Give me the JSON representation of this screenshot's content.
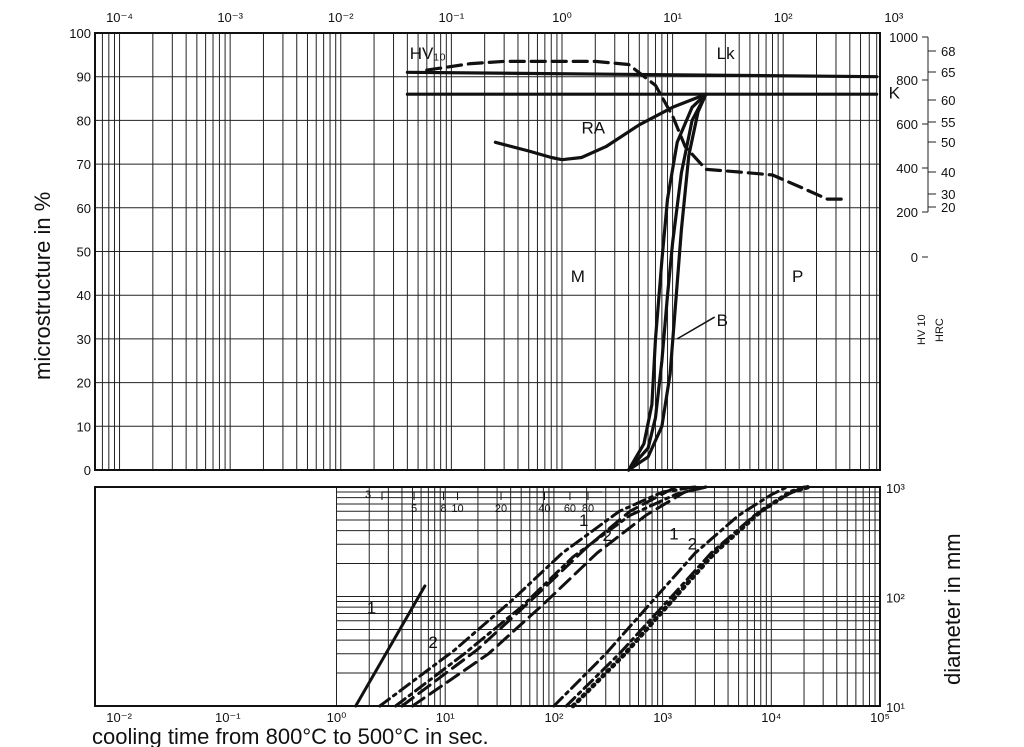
{
  "chart_data": [
    {
      "type": "line",
      "panel": "upper",
      "x_scale": "log",
      "x_ticks": [
        "10⁻⁴",
        "10⁻³",
        "10⁻²",
        "10⁻¹",
        "10⁰",
        "10¹",
        "10²",
        "10³"
      ],
      "xlim": [
        6e-05,
        750
      ],
      "ylabel": "microstructure in %",
      "ylim": [
        0,
        100
      ],
      "y_ticks": [
        "0",
        "10",
        "20",
        "30",
        "40",
        "50",
        "60",
        "70",
        "80",
        "90",
        "100"
      ],
      "hardness_scale": {
        "label_top": "HV 10",
        "label_bottom": "HRC",
        "hv_ticks": [
          "1000",
          "800",
          "600",
          "400",
          "200",
          "0"
        ],
        "hrc_ticks": [
          "68",
          "65",
          "60",
          "55",
          "50",
          "40",
          "30",
          "20"
        ]
      },
      "region_labels": [
        "M",
        "P",
        "RA",
        "B",
        "Lk",
        "K",
        "HV₁₀"
      ],
      "series": [
        {
          "name": "Lk",
          "style": "solid",
          "x": [
            0.04,
            700
          ],
          "y": [
            91,
            90
          ]
        },
        {
          "name": "K",
          "style": "solid",
          "x": [
            0.04,
            700
          ],
          "y": [
            86,
            86
          ]
        },
        {
          "name": "RA",
          "style": "solid",
          "x": [
            0.25,
            0.5,
            0.8,
            1.0,
            1.5,
            2.5,
            5,
            10,
            20
          ],
          "y": [
            75,
            73,
            71.5,
            71,
            71.5,
            74,
            79,
            83,
            86
          ]
        },
        {
          "name": "HV₁₀",
          "style": "dashed",
          "x": [
            0.06,
            0.15,
            0.3,
            0.6,
            1.0,
            2.0,
            4.0,
            7.0,
            10,
            13,
            20,
            40,
            80,
            150,
            250,
            350
          ],
          "y": [
            91.5,
            93,
            93.5,
            93.5,
            93.5,
            93.5,
            92.8,
            88,
            81,
            74,
            68.8,
            68.2,
            67.5,
            64.5,
            62,
            62
          ]
        },
        {
          "name": "B",
          "style": "solid",
          "x": [
            4,
            6,
            7,
            8,
            9,
            10,
            12,
            15,
            20
          ],
          "y": [
            0,
            5,
            12,
            25,
            40,
            52,
            68,
            80,
            86
          ]
        },
        {
          "name": "",
          "style": "solid",
          "x": [
            4,
            5.5,
            6.5,
            7,
            8,
            9,
            11,
            15,
            20
          ],
          "y": [
            0,
            6,
            15,
            30,
            48,
            62,
            75,
            83,
            86
          ]
        },
        {
          "name": "",
          "style": "solid",
          "x": [
            4,
            6,
            8,
            9.5,
            10.5,
            12,
            14,
            17,
            20
          ],
          "y": [
            0,
            3,
            10,
            22,
            36,
            55,
            72,
            82,
            86
          ]
        }
      ]
    },
    {
      "type": "line",
      "panel": "lower",
      "xlabel": "cooling time from 800°C to 500°C in sec.",
      "x_scale": "log",
      "x_ticks": [
        "10⁻²",
        "10⁻¹",
        "10⁰",
        "10¹",
        "10²",
        "10³",
        "10⁴",
        "10⁵"
      ],
      "xlim": [
        0.006,
        100000
      ],
      "ylabel": "diameter in mm",
      "y_scale": "log",
      "y_ticks": [
        "10¹",
        "10²",
        "10³"
      ],
      "ylim": [
        10,
        1000
      ],
      "inset_scale": [
        "3",
        "5",
        "8",
        "10",
        "20",
        "40",
        "60",
        "80"
      ],
      "series": [
        {
          "name": "1",
          "style": "solid",
          "x": [
            1.5,
            6.5
          ],
          "y": [
            10,
            125
          ]
        },
        {
          "name": "1",
          "style": "dashed",
          "x": [
            4,
            20,
            60,
            200,
            500,
            1200,
            2000
          ],
          "y": [
            10,
            33,
            90,
            280,
            600,
            950,
            1000
          ]
        },
        {
          "name": "2",
          "style": "dashed",
          "x": [
            5,
            25,
            80,
            250,
            700,
            1600,
            2500
          ],
          "y": [
            10,
            30,
            85,
            250,
            550,
            900,
            1000
          ]
        },
        {
          "name": "",
          "style": "dash-dot",
          "x": [
            2.5,
            12,
            40,
            120,
            400,
            1000,
            2000
          ],
          "y": [
            10,
            32,
            90,
            250,
            600,
            900,
            1000
          ]
        },
        {
          "name": "",
          "style": "dash-dot",
          "x": [
            3.5,
            15,
            50,
            150,
            500,
            1300,
            2500
          ],
          "y": [
            10,
            30,
            80,
            230,
            550,
            850,
            1000
          ]
        },
        {
          "name": "1",
          "style": "dash-dot",
          "x": [
            100,
            300,
            800,
            2000,
            5000,
            10000,
            14000
          ],
          "y": [
            10,
            30,
            90,
            250,
            550,
            850,
            1000
          ]
        },
        {
          "name": "2",
          "style": "dash-dot",
          "x": [
            130,
            400,
            1100,
            2800,
            7000,
            14000,
            20000
          ],
          "y": [
            10,
            30,
            90,
            250,
            550,
            850,
            1000
          ]
        },
        {
          "name": "",
          "style": "dotted",
          "x": [
            150,
            450,
            1200,
            3000,
            8000,
            15000,
            22000
          ],
          "y": [
            10,
            30,
            90,
            250,
            600,
            900,
            1000
          ]
        }
      ],
      "curve_labels": [
        "1",
        "2",
        "1",
        "2",
        "1",
        "2"
      ]
    }
  ]
}
